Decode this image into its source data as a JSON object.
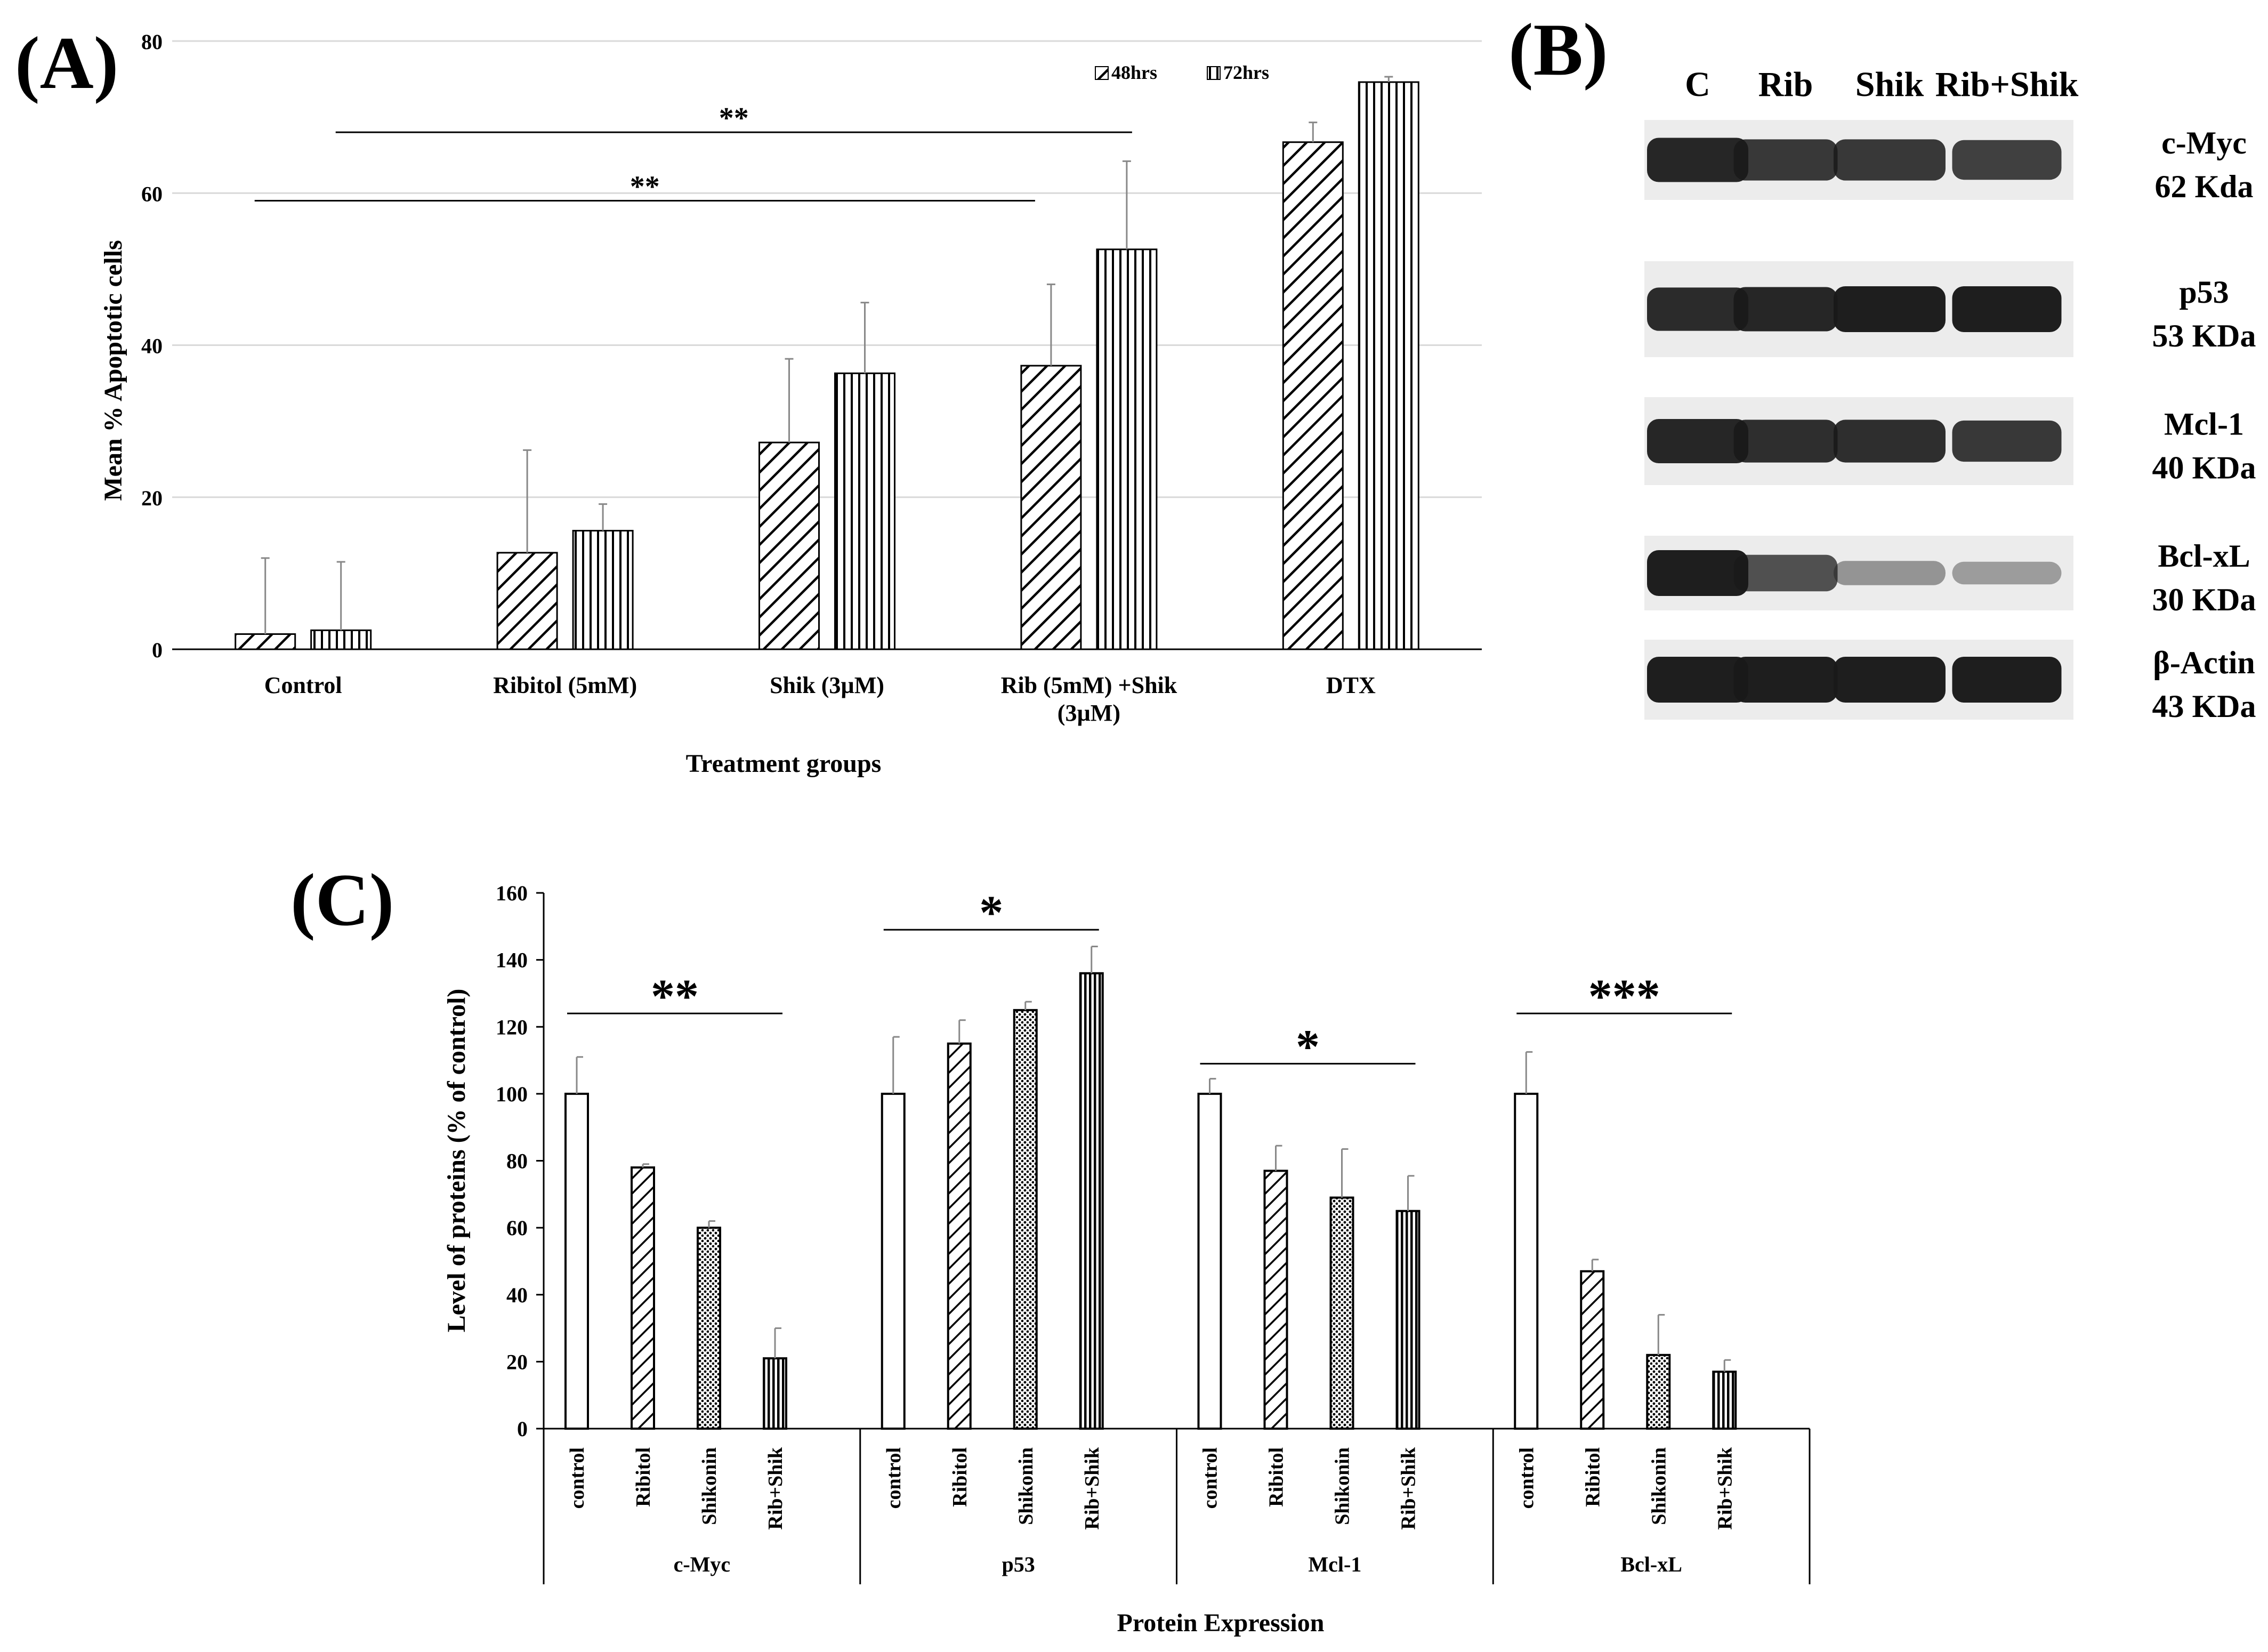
{
  "panel_labels": {
    "a": "(A)",
    "b": "(B)",
    "c": "(C)"
  },
  "chart_data": [
    {
      "type": "bar",
      "title": "",
      "xlabel": "Treatment groups",
      "ylabel": "Mean % Apoptotic cells",
      "ylim": [
        0,
        80
      ],
      "yticks": [
        "0",
        "20",
        "40",
        "60",
        "80"
      ],
      "grid": true,
      "legend_position": "top-right",
      "categories": [
        "Control",
        "Ribitol (5mM)",
        "Shik (3µM)",
        "Rib (5mM) +Shik (3µM)",
        "DTX"
      ],
      "series": [
        {
          "name": "48hrs",
          "pattern": "diagonal",
          "values": [
            2,
            12.7,
            27.2,
            37.3,
            66.7
          ],
          "errors": [
            10,
            13.5,
            11,
            10.7,
            2.6
          ]
        },
        {
          "name": "72hrs",
          "pattern": "vertical",
          "values": [
            2.5,
            15.6,
            36.3,
            52.6,
            74.6
          ],
          "errors": [
            9,
            3.5,
            9.3,
            11.6,
            0.7
          ]
        }
      ],
      "significance": [
        {
          "label": "**",
          "from": 0,
          "to": 3,
          "level": 68
        },
        {
          "label": "**",
          "from": 0,
          "to": 3,
          "level": 59
        }
      ]
    },
    {
      "type": "bar",
      "title": "",
      "xlabel": "Protein Expression",
      "ylabel": "Level of  proteins (% of control)",
      "ylim": [
        0,
        160
      ],
      "yticks": [
        "0",
        "20",
        "40",
        "60",
        "80",
        "100",
        "120",
        "140",
        "160"
      ],
      "grid": false,
      "bar_labels": [
        "control",
        "Ribitol",
        "Shikonin",
        "Rib+Shik"
      ],
      "groups": [
        {
          "name": "c-Myc",
          "values": [
            100,
            78,
            60,
            21
          ],
          "errors": [
            11,
            1,
            2,
            9
          ],
          "sig": "**",
          "sig_level": 124
        },
        {
          "name": "p53",
          "values": [
            100,
            115,
            125,
            136
          ],
          "errors": [
            17,
            7,
            2.5,
            8
          ],
          "sig": "*",
          "sig_level": 149
        },
        {
          "name": "Mcl-1",
          "values": [
            100,
            77,
            69,
            65
          ],
          "errors": [
            4.5,
            7.5,
            14.5,
            10.5
          ],
          "sig": "*",
          "sig_level": 109
        },
        {
          "name": "Bcl-xL",
          "values": [
            100,
            47,
            22,
            17
          ],
          "errors": [
            12.5,
            3.5,
            12,
            3.5
          ],
          "sig": "***",
          "sig_level": 124
        }
      ]
    }
  ],
  "blot": {
    "lanes": [
      "C",
      "Rib",
      "Shik",
      "Rib+Shik"
    ],
    "rows": [
      {
        "protein": "c-Myc",
        "size": "62 Kda",
        "intensity": [
          0.95,
          0.85,
          0.85,
          0.8
        ]
      },
      {
        "protein": "p53",
        "size": "53 KDa",
        "intensity": [
          0.92,
          0.95,
          1.0,
          1.0
        ]
      },
      {
        "protein": "Mcl-1",
        "size": "40 KDa",
        "intensity": [
          0.95,
          0.9,
          0.9,
          0.85
        ]
      },
      {
        "protein": "Bcl-xL",
        "size": "30 KDa",
        "intensity": [
          1.0,
          0.7,
          0.3,
          0.25
        ]
      },
      {
        "protein": "β-Actin",
        "size": "43 KDa",
        "intensity": [
          1.0,
          1.0,
          1.0,
          1.0
        ]
      }
    ]
  },
  "colors": {
    "bar_fill": "#ffffff",
    "bar_stroke": "#000000",
    "grid": "#d9d9d9",
    "blot_bg": "#ececec",
    "band": "#1a1a1a"
  }
}
